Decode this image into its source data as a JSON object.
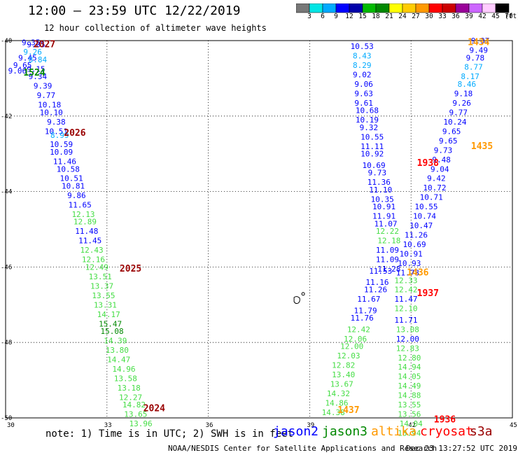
{
  "header": {
    "title": "12:00 – 23:59 UTC 12/22/2019",
    "subtitle": "12 hour collection of altimeter wave heights"
  },
  "color_scale": {
    "colors": [
      "#777777",
      "#00e5e5",
      "#00aaff",
      "#0000ff",
      "#0000aa",
      "#00bb00",
      "#008800",
      "#ffff00",
      "#ffcc00",
      "#ff9900",
      "#ff0000",
      "#cc0000",
      "#990099",
      "#cc66ff",
      "#ffccff",
      "#000000"
    ],
    "values": [
      "3",
      "6",
      "9",
      "12",
      "15",
      "18",
      "21",
      "24",
      "27",
      "30",
      "33",
      "36",
      "39",
      "42",
      "45",
      "70",
      "(ft)"
    ]
  },
  "map": {
    "xlim": [
      30,
      45
    ],
    "ylim": [
      -50,
      -40
    ],
    "x_ticks": [
      "30",
      "33",
      "36",
      "39",
      "42",
      "45"
    ],
    "y_ticks": [
      "-40",
      "-42",
      "-44",
      "-46",
      "-48",
      "-50"
    ],
    "grid": "dotted",
    "land": "small islands near 38.6 E, 46.9 S"
  },
  "swh_colors": {
    "s": "#0000ff",
    "o": "#00aaff",
    "l": "#44dd44",
    "d": "#008800"
  },
  "hour_colors": {
    "r": "#990000",
    "a": "#ff9900",
    "e": "#ff0000",
    "g": "#008800"
  },
  "observations": [
    {
      "lon": 30.75,
      "lat": -40.05,
      "v": "9.35",
      "c": "s"
    },
    {
      "lon": 30.9,
      "lat": -40.1,
      "v": "9.05",
      "c": "s"
    },
    {
      "lon": 30.8,
      "lat": -40.3,
      "v": "9.26",
      "c": "o"
    },
    {
      "lon": 30.65,
      "lat": -40.45,
      "v": "9.45",
      "c": "s"
    },
    {
      "lon": 30.95,
      "lat": -40.5,
      "v": "8.84",
      "c": "o"
    },
    {
      "lon": 30.5,
      "lat": -40.65,
      "v": "9.65",
      "c": "s"
    },
    {
      "lon": 30.9,
      "lat": -40.75,
      "v": "9.15",
      "c": "s"
    },
    {
      "lon": 30.35,
      "lat": -40.8,
      "v": "9.06",
      "c": "s"
    },
    {
      "lon": 30.95,
      "lat": -40.95,
      "v": "9.34",
      "c": "s"
    },
    {
      "lon": 31.1,
      "lat": -41.2,
      "v": "9.39",
      "c": "s"
    },
    {
      "lon": 31.2,
      "lat": -41.45,
      "v": "9.77",
      "c": "s"
    },
    {
      "lon": 31.3,
      "lat": -41.7,
      "v": "10.18",
      "c": "s"
    },
    {
      "lon": 31.35,
      "lat": -41.9,
      "v": "10.10",
      "c": "s"
    },
    {
      "lon": 31.5,
      "lat": -42.15,
      "v": "9.38",
      "c": "s"
    },
    {
      "lon": 31.5,
      "lat": -42.4,
      "v": "10.51",
      "c": "s"
    },
    {
      "lon": 31.6,
      "lat": -42.5,
      "v": "8.99",
      "c": "o"
    },
    {
      "lon": 31.65,
      "lat": -42.75,
      "v": "10.59",
      "c": "s"
    },
    {
      "lon": 31.65,
      "lat": -42.95,
      "v": "10.09",
      "c": "s"
    },
    {
      "lon": 31.75,
      "lat": -43.2,
      "v": "11.46",
      "c": "s"
    },
    {
      "lon": 31.85,
      "lat": -43.4,
      "v": "10.58",
      "c": "s"
    },
    {
      "lon": 31.95,
      "lat": -43.65,
      "v": "10.51",
      "c": "s"
    },
    {
      "lon": 32.0,
      "lat": -43.85,
      "v": "10.81",
      "c": "s"
    },
    {
      "lon": 32.1,
      "lat": -44.1,
      "v": "9.86",
      "c": "s"
    },
    {
      "lon": 32.2,
      "lat": -44.35,
      "v": "11.65",
      "c": "s"
    },
    {
      "lon": 32.3,
      "lat": -44.6,
      "v": "12.13",
      "c": "l"
    },
    {
      "lon": 32.35,
      "lat": -44.8,
      "v": "12.89",
      "c": "l"
    },
    {
      "lon": 32.4,
      "lat": -45.05,
      "v": "11.48",
      "c": "s"
    },
    {
      "lon": 32.5,
      "lat": -45.3,
      "v": "11.45",
      "c": "s"
    },
    {
      "lon": 32.55,
      "lat": -45.55,
      "v": "12.43",
      "c": "l"
    },
    {
      "lon": 32.6,
      "lat": -45.8,
      "v": "12.16",
      "c": "l"
    },
    {
      "lon": 32.7,
      "lat": -46.0,
      "v": "12.49",
      "c": "l"
    },
    {
      "lon": 32.8,
      "lat": -46.25,
      "v": "13.51",
      "c": "l"
    },
    {
      "lon": 32.85,
      "lat": -46.5,
      "v": "13.37",
      "c": "l"
    },
    {
      "lon": 32.9,
      "lat": -46.75,
      "v": "13.55",
      "c": "l"
    },
    {
      "lon": 32.95,
      "lat": -47.0,
      "v": "13.31",
      "c": "l"
    },
    {
      "lon": 33.05,
      "lat": -47.25,
      "v": "14.17",
      "c": "l"
    },
    {
      "lon": 33.1,
      "lat": -47.5,
      "v": "15.47",
      "c": "d"
    },
    {
      "lon": 33.15,
      "lat": -47.7,
      "v": "15.08",
      "c": "d"
    },
    {
      "lon": 33.25,
      "lat": -47.95,
      "v": "14.39",
      "c": "l"
    },
    {
      "lon": 33.3,
      "lat": -48.2,
      "v": "13.80",
      "c": "l"
    },
    {
      "lon": 33.35,
      "lat": -48.45,
      "v": "14.47",
      "c": "l"
    },
    {
      "lon": 33.5,
      "lat": -48.7,
      "v": "14.96",
      "c": "l"
    },
    {
      "lon": 33.55,
      "lat": -48.95,
      "v": "13.58",
      "c": "l"
    },
    {
      "lon": 33.65,
      "lat": -49.2,
      "v": "13.18",
      "c": "l"
    },
    {
      "lon": 33.7,
      "lat": -49.45,
      "v": "12.27",
      "c": "l"
    },
    {
      "lon": 33.8,
      "lat": -49.65,
      "v": "14.82",
      "c": "l"
    },
    {
      "lon": 33.85,
      "lat": -49.9,
      "v": "13.65",
      "c": "l"
    },
    {
      "lon": 34.0,
      "lat": -50.15,
      "v": "13.96",
      "c": "l"
    },
    {
      "lon": 40.55,
      "lat": -40.15,
      "v": "10.53",
      "c": "s"
    },
    {
      "lon": 40.55,
      "lat": -40.4,
      "v": "8.43",
      "c": "o"
    },
    {
      "lon": 40.55,
      "lat": -40.65,
      "v": "8.29",
      "c": "o"
    },
    {
      "lon": 40.55,
      "lat": -40.9,
      "v": "9.02",
      "c": "s"
    },
    {
      "lon": 40.6,
      "lat": -41.15,
      "v": "9.06",
      "c": "s"
    },
    {
      "lon": 40.6,
      "lat": -41.4,
      "v": "9.63",
      "c": "s"
    },
    {
      "lon": 40.6,
      "lat": -41.65,
      "v": "9.61",
      "c": "s"
    },
    {
      "lon": 40.7,
      "lat": -41.85,
      "v": "10.68",
      "c": "s"
    },
    {
      "lon": 40.7,
      "lat": -42.1,
      "v": "10.19",
      "c": "s"
    },
    {
      "lon": 40.75,
      "lat": -42.3,
      "v": "9.32",
      "c": "s"
    },
    {
      "lon": 40.85,
      "lat": -42.55,
      "v": "10.55",
      "c": "s"
    },
    {
      "lon": 40.85,
      "lat": -42.8,
      "v": "11.11",
      "c": "s"
    },
    {
      "lon": 40.85,
      "lat": -43.0,
      "v": "10.92",
      "c": "s"
    },
    {
      "lon": 40.9,
      "lat": -43.3,
      "v": "10.69",
      "c": "s"
    },
    {
      "lon": 41.0,
      "lat": -43.5,
      "v": "9.73",
      "c": "s"
    },
    {
      "lon": 41.05,
      "lat": -43.75,
      "v": "11.36",
      "c": "s"
    },
    {
      "lon": 41.1,
      "lat": -43.95,
      "v": "11.10",
      "c": "s"
    },
    {
      "lon": 41.15,
      "lat": -44.2,
      "v": "10.35",
      "c": "s"
    },
    {
      "lon": 41.2,
      "lat": -44.4,
      "v": "10.91",
      "c": "s"
    },
    {
      "lon": 41.2,
      "lat": -44.65,
      "v": "11.91",
      "c": "s"
    },
    {
      "lon": 41.25,
      "lat": -44.85,
      "v": "11.07",
      "c": "s"
    },
    {
      "lon": 41.3,
      "lat": -45.05,
      "v": "12.22",
      "c": "l"
    },
    {
      "lon": 41.35,
      "lat": -45.3,
      "v": "12.18",
      "c": "l"
    },
    {
      "lon": 41.3,
      "lat": -45.55,
      "v": "11.09",
      "c": "s"
    },
    {
      "lon": 41.3,
      "lat": -45.8,
      "v": "11.09",
      "c": "s"
    },
    {
      "lon": 41.35,
      "lat": -46.05,
      "v": "11.28",
      "c": "s"
    },
    {
      "lon": 41.1,
      "lat": -46.1,
      "v": "11.53",
      "c": "s"
    },
    {
      "lon": 41.0,
      "lat": -46.4,
      "v": "11.16",
      "c": "s"
    },
    {
      "lon": 40.95,
      "lat": -46.6,
      "v": "11.26",
      "c": "s"
    },
    {
      "lon": 40.75,
      "lat": -46.85,
      "v": "11.67",
      "c": "s"
    },
    {
      "lon": 40.65,
      "lat": -47.15,
      "v": "11.79",
      "c": "s"
    },
    {
      "lon": 40.55,
      "lat": -47.35,
      "v": "11.76",
      "c": "s"
    },
    {
      "lon": 40.45,
      "lat": -47.65,
      "v": "12.42",
      "c": "l"
    },
    {
      "lon": 40.35,
      "lat": -47.9,
      "v": "12.06",
      "c": "l"
    },
    {
      "lon": 40.25,
      "lat": -48.1,
      "v": "12.00",
      "c": "l"
    },
    {
      "lon": 40.15,
      "lat": -48.35,
      "v": "12.03",
      "c": "l"
    },
    {
      "lon": 40.0,
      "lat": -48.6,
      "v": "12.82",
      "c": "l"
    },
    {
      "lon": 40.0,
      "lat": -48.85,
      "v": "13.40",
      "c": "l"
    },
    {
      "lon": 39.95,
      "lat": -49.1,
      "v": "13.67",
      "c": "l"
    },
    {
      "lon": 39.85,
      "lat": -49.35,
      "v": "14.32",
      "c": "l"
    },
    {
      "lon": 39.8,
      "lat": -49.6,
      "v": "14.86",
      "c": "l"
    },
    {
      "lon": 39.7,
      "lat": -49.85,
      "v": "14.38",
      "c": "l"
    },
    {
      "lon": 44.05,
      "lat": -40.0,
      "v": "9.37",
      "c": "s"
    },
    {
      "lon": 44.0,
      "lat": -40.25,
      "v": "9.49",
      "c": "s"
    },
    {
      "lon": 43.9,
      "lat": -40.45,
      "v": "9.78",
      "c": "s"
    },
    {
      "lon": 43.85,
      "lat": -40.7,
      "v": "8.77",
      "c": "o"
    },
    {
      "lon": 43.75,
      "lat": -40.95,
      "v": "8.17",
      "c": "o"
    },
    {
      "lon": 43.65,
      "lat": -41.15,
      "v": "8.46",
      "c": "o"
    },
    {
      "lon": 43.55,
      "lat": -41.4,
      "v": "9.18",
      "c": "s"
    },
    {
      "lon": 43.5,
      "lat": -41.65,
      "v": "9.26",
      "c": "s"
    },
    {
      "lon": 43.4,
      "lat": -41.9,
      "v": "9.77",
      "c": "s"
    },
    {
      "lon": 43.3,
      "lat": -42.15,
      "v": "10.24",
      "c": "s"
    },
    {
      "lon": 43.2,
      "lat": -42.4,
      "v": "9.65",
      "c": "s"
    },
    {
      "lon": 43.1,
      "lat": -42.65,
      "v": "9.65",
      "c": "s"
    },
    {
      "lon": 42.95,
      "lat": -42.9,
      "v": "9.73",
      "c": "s"
    },
    {
      "lon": 42.9,
      "lat": -43.15,
      "v": "9.48",
      "c": "s"
    },
    {
      "lon": 42.85,
      "lat": -43.4,
      "v": "9.04",
      "c": "s"
    },
    {
      "lon": 42.75,
      "lat": -43.65,
      "v": "9.42",
      "c": "s"
    },
    {
      "lon": 42.7,
      "lat": -43.9,
      "v": "10.72",
      "c": "s"
    },
    {
      "lon": 42.6,
      "lat": -44.15,
      "v": "10.71",
      "c": "s"
    },
    {
      "lon": 42.45,
      "lat": -44.4,
      "v": "10.55",
      "c": "s"
    },
    {
      "lon": 42.4,
      "lat": -44.65,
      "v": "10.74",
      "c": "s"
    },
    {
      "lon": 42.3,
      "lat": -44.9,
      "v": "10.47",
      "c": "s"
    },
    {
      "lon": 42.15,
      "lat": -45.15,
      "v": "11.26",
      "c": "s"
    },
    {
      "lon": 42.1,
      "lat": -45.4,
      "v": "10.69",
      "c": "s"
    },
    {
      "lon": 42.0,
      "lat": -45.65,
      "v": "10.91",
      "c": "s"
    },
    {
      "lon": 41.95,
      "lat": -45.9,
      "v": "10.93",
      "c": "s"
    },
    {
      "lon": 41.9,
      "lat": -46.15,
      "v": "11.78",
      "c": "s"
    },
    {
      "lon": 41.85,
      "lat": -46.35,
      "v": "12.33",
      "c": "l"
    },
    {
      "lon": 41.85,
      "lat": -46.6,
      "v": "12.42",
      "c": "l"
    },
    {
      "lon": 41.85,
      "lat": -46.85,
      "v": "11.47",
      "c": "s"
    },
    {
      "lon": 41.85,
      "lat": -47.1,
      "v": "12.10",
      "c": "l"
    },
    {
      "lon": 41.85,
      "lat": -47.4,
      "v": "11.71",
      "c": "s"
    },
    {
      "lon": 41.9,
      "lat": -47.65,
      "v": "13.08",
      "c": "l"
    },
    {
      "lon": 41.9,
      "lat": -47.9,
      "v": "12.00",
      "c": "s"
    },
    {
      "lon": 41.9,
      "lat": -48.15,
      "v": "12.83",
      "c": "l"
    },
    {
      "lon": 41.95,
      "lat": -48.4,
      "v": "12.80",
      "c": "l"
    },
    {
      "lon": 41.95,
      "lat": -48.65,
      "v": "14.94",
      "c": "l"
    },
    {
      "lon": 41.95,
      "lat": -48.9,
      "v": "14.05",
      "c": "l"
    },
    {
      "lon": 41.95,
      "lat": -49.15,
      "v": "14.49",
      "c": "l"
    },
    {
      "lon": 41.95,
      "lat": -49.4,
      "v": "14.88",
      "c": "l"
    },
    {
      "lon": 41.95,
      "lat": -49.65,
      "v": "13.55",
      "c": "l"
    },
    {
      "lon": 41.95,
      "lat": -49.9,
      "v": "13.56",
      "c": "l"
    },
    {
      "lon": 42.0,
      "lat": -50.15,
      "v": "14.04",
      "c": "l"
    },
    {
      "lon": 41.95,
      "lat": -50.4,
      "v": "13.94",
      "c": "l"
    }
  ],
  "hour_labels": [
    {
      "lon": 31.15,
      "lat": -40.1,
      "v": "2027",
      "c": "r"
    },
    {
      "lon": 30.85,
      "lat": -40.85,
      "v": "1524",
      "c": "g"
    },
    {
      "lon": 32.05,
      "lat": -42.45,
      "v": "2026",
      "c": "r"
    },
    {
      "lon": 33.7,
      "lat": -46.05,
      "v": "2025",
      "c": "r"
    },
    {
      "lon": 34.4,
      "lat": -49.75,
      "v": "2024",
      "c": "r"
    },
    {
      "lon": 42.5,
      "lat": -43.25,
      "v": "1938",
      "c": "e"
    },
    {
      "lon": 44.0,
      "lat": -40.05,
      "v": "1434",
      "c": "a"
    },
    {
      "lon": 44.1,
      "lat": -42.8,
      "v": "1435",
      "c": "a"
    },
    {
      "lon": 42.2,
      "lat": -46.15,
      "v": "1436",
      "c": "a"
    },
    {
      "lon": 42.5,
      "lat": -46.7,
      "v": "1937",
      "c": "e"
    },
    {
      "lon": 40.15,
      "lat": -49.8,
      "v": "1437",
      "c": "a"
    },
    {
      "lon": 43.0,
      "lat": -50.05,
      "v": "1936",
      "c": "e"
    }
  ],
  "footer": {
    "note": "note: 1) Time is in UTC; 2) SWH is in feet",
    "satellites": [
      {
        "name": "jason2",
        "color": "#0000ff"
      },
      {
        "name": "jason3",
        "color": "#008800"
      },
      {
        "name": "altika",
        "color": "#ff9900"
      },
      {
        "name": "cryosat",
        "color": "#ff0000"
      },
      {
        "name": "s3a",
        "color": "#990000"
      }
    ],
    "credit": "NOAA/NESDIS Center for Satellite Applications and Research",
    "timestamp": "Dec 23 13:27:52 UTC 2019"
  }
}
